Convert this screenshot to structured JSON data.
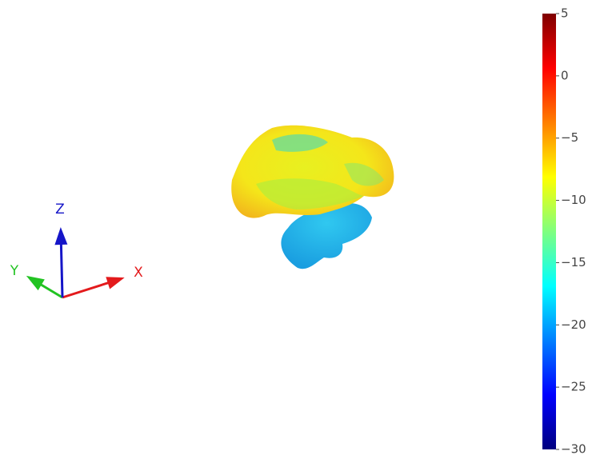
{
  "chart_data": {
    "type": "surface",
    "axis_labels": [
      "X",
      "Y",
      "Z"
    ],
    "axis_colors": [
      "#e31a1c",
      "#22c322",
      "#1515c8"
    ],
    "colorbar": {
      "clim": [
        -30,
        5
      ],
      "ticks": [
        5,
        0,
        {
          "value": -5,
          "label": "−5"
        },
        {
          "value": -10,
          "label": "−10"
        },
        {
          "value": -15,
          "label": "−15"
        },
        {
          "value": -20,
          "label": "−20"
        },
        {
          "value": -25,
          "label": "−25"
        },
        {
          "value": -30,
          "label": "−30"
        }
      ],
      "colorscale": [
        "#00007f",
        "#0000ff",
        "#007fff",
        "#00ffff",
        "#7fff7f",
        "#ffff00",
        "#ff7f00",
        "#ff0000",
        "#7f0000"
      ]
    }
  }
}
